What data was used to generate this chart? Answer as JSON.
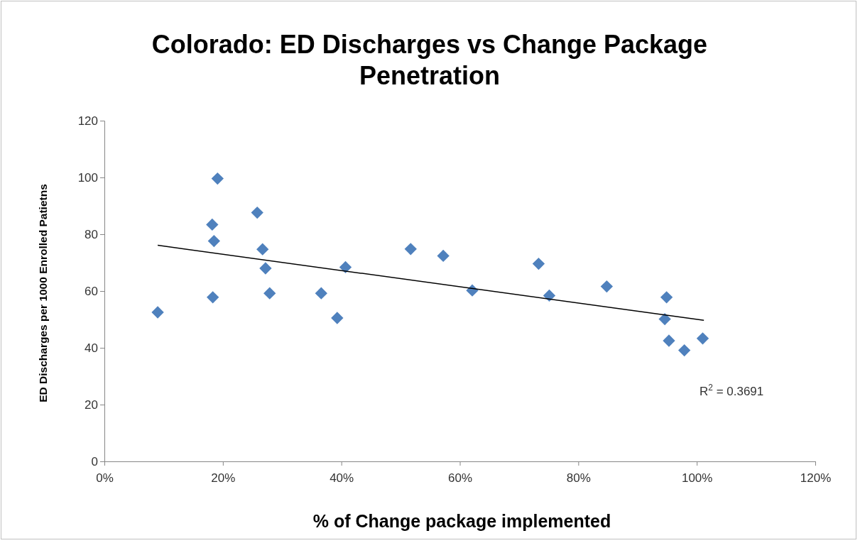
{
  "chart_data": {
    "type": "scatter",
    "title": "Colorado: ED Discharges vs Change Package Penetration",
    "xlabel": "% of Change package implemented",
    "ylabel": "ED Discharges  per 1000 Enrolled Patietns",
    "series": [
      {
        "color": "#4f81bd",
        "marker": "diamond",
        "x": [
          9.0,
          19.1,
          18.2,
          18.5,
          18.3,
          25.8,
          26.7,
          27.2,
          27.9,
          36.6,
          39.3,
          40.7,
          51.7,
          57.2,
          62.1,
          73.3,
          75.1,
          84.8,
          94.9,
          94.6,
          95.3,
          97.9,
          101.0
        ],
        "values": [
          52.5,
          99.6,
          83.4,
          77.6,
          57.8,
          87.6,
          74.7,
          68.0,
          59.2,
          59.2,
          50.5,
          68.4,
          74.8,
          72.4,
          60.2,
          69.6,
          58.4,
          61.6,
          57.8,
          50.1,
          42.5,
          39.1,
          43.3
        ]
      },
      {
        "type": "line",
        "color": "#000000",
        "marker": "none",
        "line_style": "solid",
        "x": [
          9.0,
          101.2
        ],
        "values": [
          76.1,
          49.7
        ]
      }
    ],
    "xlim": [
      0,
      120
    ],
    "xticks": [
      {
        "value": 0,
        "label": "0%"
      },
      {
        "value": 20,
        "label": "20%"
      },
      {
        "value": 40,
        "label": "40%"
      },
      {
        "value": 60,
        "label": "60%"
      },
      {
        "value": 80,
        "label": "80%"
      },
      {
        "value": 100,
        "label": "100%"
      },
      {
        "value": 120,
        "label": "120%"
      }
    ],
    "ylim": [
      0,
      120
    ],
    "yticks": [
      0,
      20,
      40,
      60,
      80,
      100,
      120
    ],
    "grid": false,
    "annotations": [
      "R$^{2}$ = 0.3691"
    ]
  }
}
